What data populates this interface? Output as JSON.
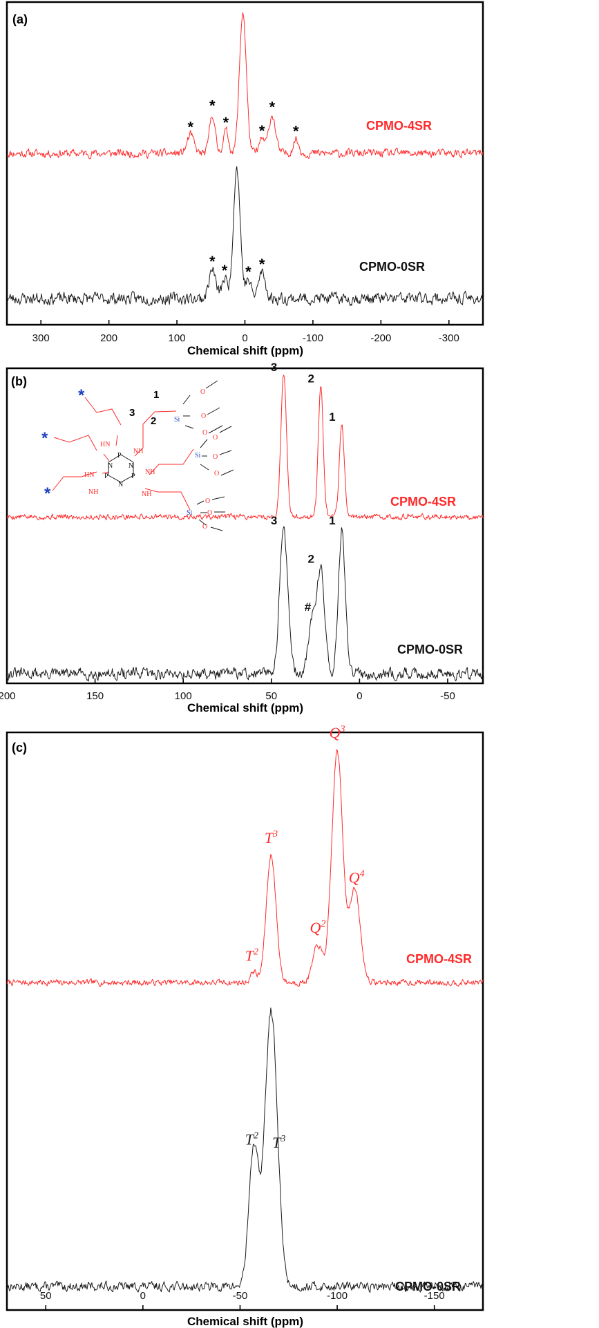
{
  "colors": {
    "red": "#ff2a2a",
    "black": "#1a1a1a",
    "blue": "#1f3fbf"
  },
  "chart_data": [
    {
      "panel": "(a)",
      "type": "line",
      "xlabel": "Chemical shift (ppm)",
      "xlim": [
        350,
        -350
      ],
      "xticks": [
        300,
        200,
        100,
        0,
        -100,
        -200,
        -300
      ],
      "xtick_labels": [
        "300",
        "200",
        "100",
        "0",
        "-100",
        "-200",
        "-300"
      ],
      "grid": false,
      "series": [
        {
          "name": "CPMO-4SR",
          "color": "red",
          "noise": 0.045,
          "seed": 11,
          "peaks": [
            [
              3,
              1.0,
              5
            ],
            [
              48,
              0.28,
              4
            ],
            [
              28,
              0.16,
              4
            ],
            [
              80,
              0.13,
              5
            ],
            [
              -40,
              0.27,
              5
            ],
            [
              -25,
              0.1,
              4
            ],
            [
              -75,
              0.1,
              4
            ]
          ],
          "markers": [
            {
              "text": "*",
              "x": 80
            },
            {
              "text": "*",
              "x": 48
            },
            {
              "text": "*",
              "x": 28
            },
            {
              "text": "*",
              "x": -25
            },
            {
              "text": "*",
              "x": -40
            },
            {
              "text": "*",
              "x": -75
            }
          ]
        },
        {
          "name": "CPMO-0SR",
          "color": "black",
          "noise": 0.07,
          "seed": 23,
          "peaks": [
            [
              12,
              1.0,
              5
            ],
            [
              48,
              0.22,
              5
            ],
            [
              30,
              0.15,
              4
            ],
            [
              -5,
              0.14,
              4
            ],
            [
              -25,
              0.2,
              5
            ]
          ],
          "markers": [
            {
              "text": "*",
              "x": 48
            },
            {
              "text": "*",
              "x": 30
            },
            {
              "text": "*",
              "x": -5
            },
            {
              "text": "*",
              "x": -25
            }
          ]
        }
      ]
    },
    {
      "panel": "(b)",
      "type": "line",
      "xlabel": "Chemical shift (ppm)",
      "xlim": [
        200,
        -70
      ],
      "xticks": [
        200,
        150,
        100,
        50,
        0,
        -50
      ],
      "xtick_labels": [
        "200",
        "150",
        "100",
        "50",
        "0",
        "-50"
      ],
      "grid": false,
      "series": [
        {
          "name": "CPMO-4SR",
          "color": "red",
          "noise": 0.03,
          "seed": 5,
          "peaks": [
            [
              43,
              1.0,
              1.6
            ],
            [
              22,
              0.92,
              1.4
            ],
            [
              10,
              0.65,
              1.4
            ]
          ],
          "markers": [
            {
              "text": "3",
              "x": 43
            },
            {
              "text": "2",
              "x": 22
            },
            {
              "text": "1",
              "x": 10
            }
          ]
        },
        {
          "name": "CPMO-0SR",
          "color": "black",
          "noise": 0.06,
          "seed": 31,
          "peaks": [
            [
              43,
              1.0,
              2.3
            ],
            [
              22,
              0.72,
              2.2
            ],
            [
              10,
              1.0,
              1.9
            ],
            [
              27,
              0.35,
              2
            ]
          ],
          "markers": [
            {
              "text": "3",
              "x": 43
            },
            {
              "text": "#",
              "x": 27
            },
            {
              "text": "2",
              "x": 22
            },
            {
              "text": "1",
              "x": 10
            }
          ]
        }
      ],
      "structure": {
        "labels": [
          "1",
          "2",
          "3"
        ],
        "atoms": {
          "P": "P",
          "N": "N",
          "HN": "HN",
          "NH": "NH",
          "O": "O",
          "Si": "Si",
          "star": "*"
        }
      }
    },
    {
      "panel": "(c)",
      "type": "line",
      "xlabel": "Chemical shift (ppm)",
      "xlim": [
        70,
        -175
      ],
      "xticks": [
        50,
        0,
        -50,
        -100,
        -150
      ],
      "xtick_labels": [
        "50",
        "0",
        "-50",
        "-100",
        "-150"
      ],
      "grid": false,
      "series": [
        {
          "name": "CPMO-4SR",
          "color": "red",
          "noise": 0.02,
          "seed": 7,
          "peaks": [
            [
              -57,
              0.05,
              1.5
            ],
            [
              -66,
              0.55,
              2.5
            ],
            [
              -90,
              0.16,
              2.5
            ],
            [
              -100,
              1.0,
              2.8
            ],
            [
              -109,
              0.4,
              2.8
            ]
          ],
          "markers": [
            {
              "text": "T",
              "sup": "2",
              "x": -56
            },
            {
              "text": "T",
              "sup": "3",
              "x": -66
            },
            {
              "text": "Q",
              "sup": "2",
              "x": -90
            },
            {
              "text": "Q",
              "sup": "3",
              "x": -100
            },
            {
              "text": "Q",
              "sup": "4",
              "x": -110
            }
          ]
        },
        {
          "name": "CPMO-0SR",
          "color": "black",
          "noise": 0.025,
          "seed": 13,
          "peaks": [
            [
              -57,
              0.5,
              2.5
            ],
            [
              -66,
              1.0,
              3.2
            ]
          ],
          "markers": [
            {
              "text": "T",
              "sup": "2",
              "x": -56
            },
            {
              "text": "T",
              "sup": "3",
              "x": -70
            }
          ]
        }
      ]
    }
  ]
}
